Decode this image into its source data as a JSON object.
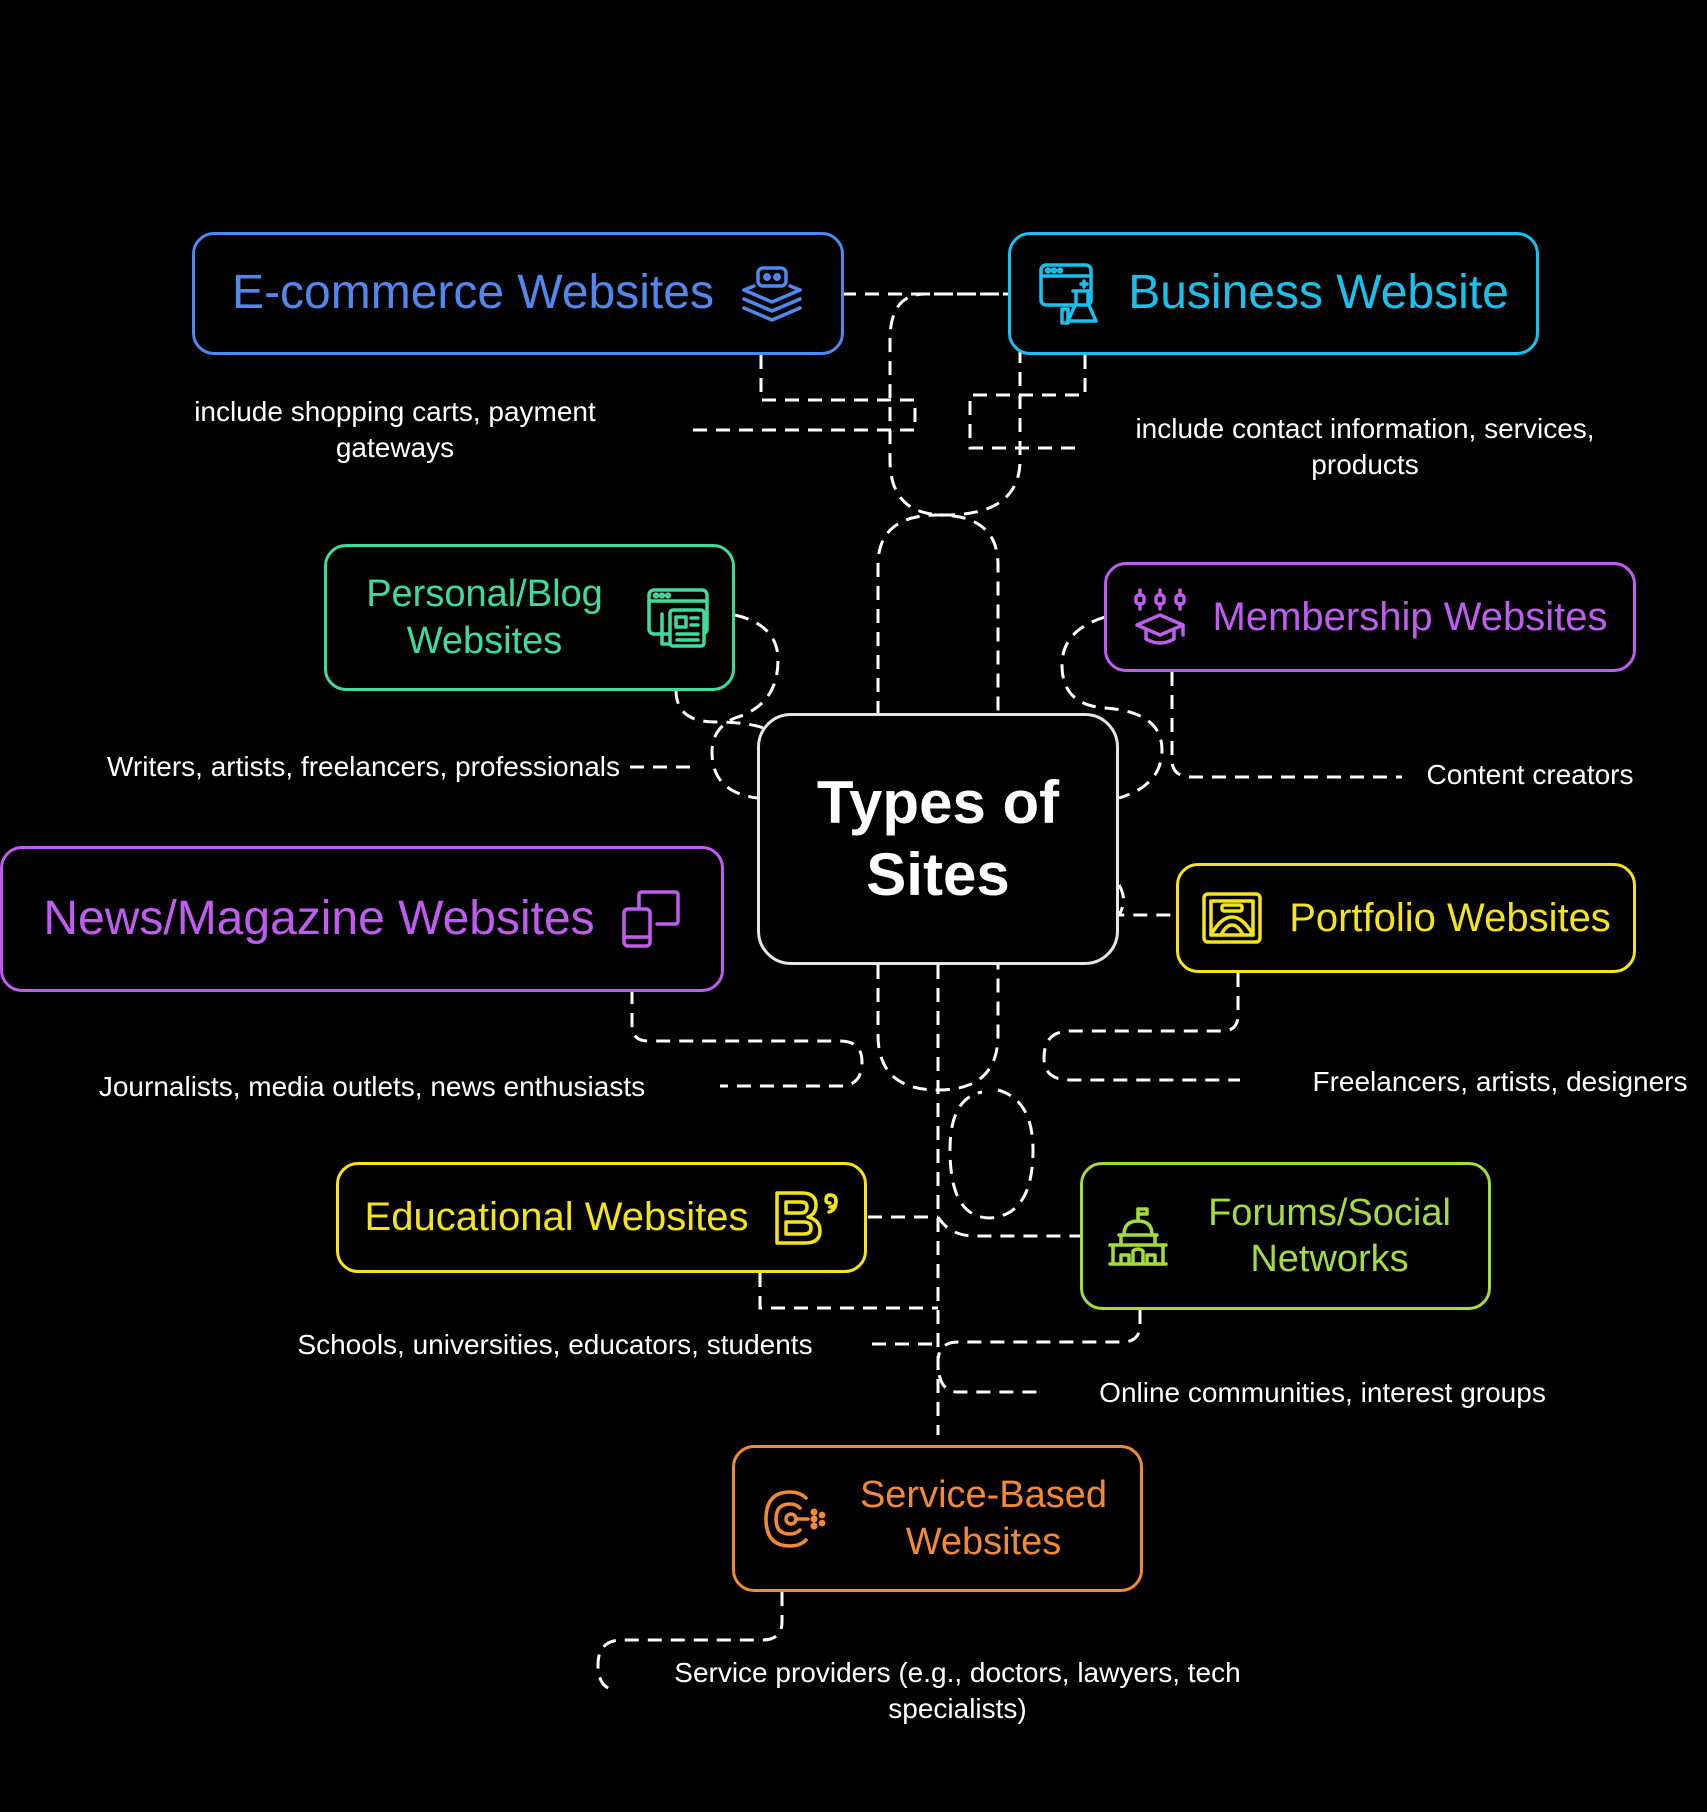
{
  "center": {
    "title": "Types of Sites"
  },
  "nodes": {
    "ecommerce": {
      "label": "E-commerce Websites",
      "color": "#4f88ee",
      "icon": "stacked-layers-icon",
      "description": "include shopping carts, payment gateways"
    },
    "business": {
      "label": "Business Website",
      "color": "#19c2ee",
      "icon": "web-lab-icon",
      "description": "include contact information, services, products"
    },
    "personal": {
      "label": "Personal/Blog Websites",
      "color": "#3edc9a",
      "icon": "blog-article-icon",
      "description": "Writers, artists, freelancers, professionals"
    },
    "membership": {
      "label": "Membership Websites",
      "color": "#c15cf0",
      "icon": "graduation-cap-icon",
      "description": "Content creators"
    },
    "news": {
      "label": "News/Magazine Websites",
      "color": "#c15cf0",
      "icon": "devices-icon",
      "description": "Journalists, media outlets, news enthusiasts"
    },
    "portfolio": {
      "label": "Portfolio Websites",
      "color": "#f5e419",
      "icon": "gallery-frame-icon",
      "description": "Freelancers, artists, designers"
    },
    "educational": {
      "label": "Educational Websites",
      "color": "#f5e419",
      "icon": "letter-b-icon",
      "description": "Schools, universities, educators, students"
    },
    "forums": {
      "label": "Forums/Social Networks",
      "color": "#a3dc3c",
      "icon": "capitol-building-icon",
      "description": "Online communities, interest groups"
    },
    "service": {
      "label": "Service-Based Websites",
      "color": "#f28a34",
      "icon": "service-logo-icon",
      "description": "Service providers (e.g., doctors, lawyers, tech specialists)"
    }
  }
}
